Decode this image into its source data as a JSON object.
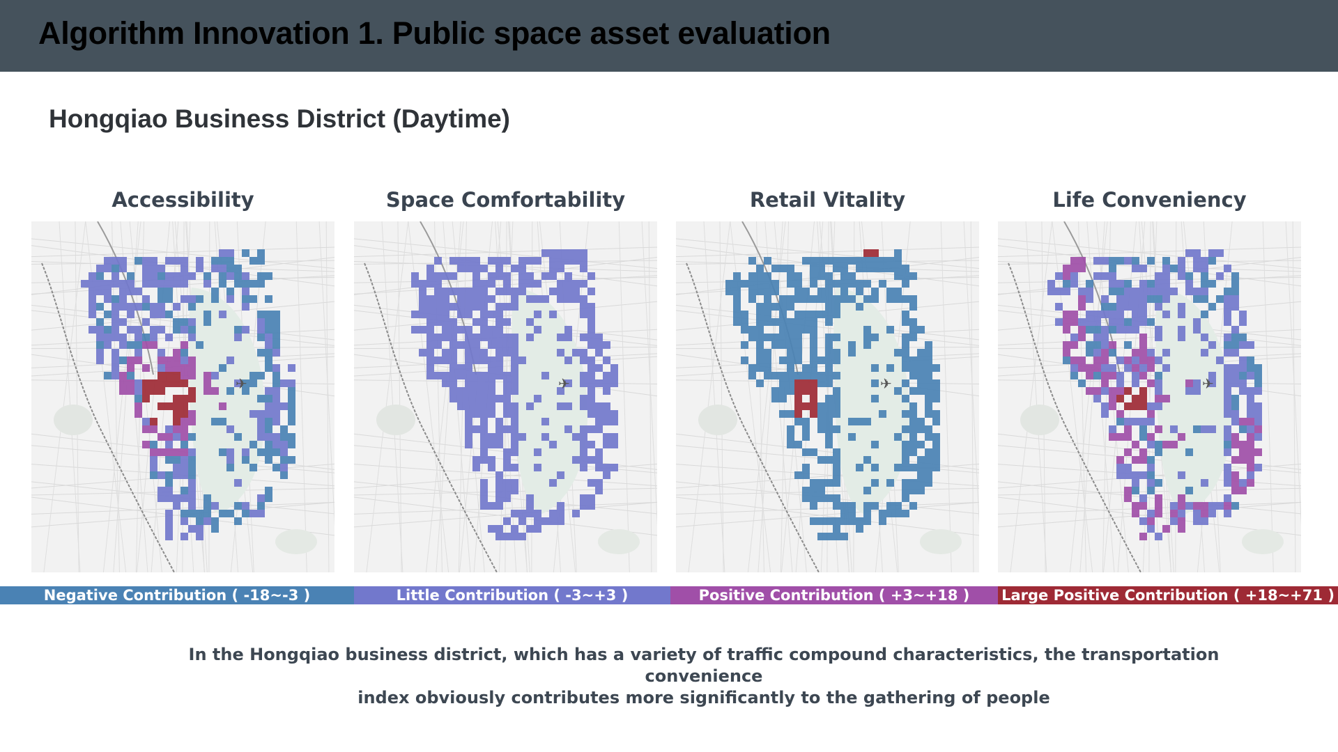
{
  "header": {
    "title": "Algorithm Innovation 1. Public space asset evaluation"
  },
  "subtitle": "Hongqiao Business District (Daytime)",
  "colors": {
    "negative": "#4a82b4",
    "little": "#7278cc",
    "positive": "#a04fa8",
    "large_positive": "#9e2a35",
    "header_bg": "#45525c"
  },
  "panels": [
    {
      "title": "Accessibility",
      "style": "accessibility"
    },
    {
      "title": "Space Comfortability",
      "style": "comfort"
    },
    {
      "title": "Retail Vitality",
      "style": "retail"
    },
    {
      "title": "Life Conveniency",
      "style": "life"
    }
  ],
  "legend": [
    {
      "label": "Negative Contribution ( -18~-3 )",
      "color": "#4a82b4"
    },
    {
      "label": "Little Contribution ( -3~+3 )",
      "color": "#7278cc"
    },
    {
      "label": "Positive Contribution ( +3~+18 )",
      "color": "#a04fa8"
    },
    {
      "label": "Large Positive Contribution ( +18~+71 )",
      "color": "#9e2a35"
    }
  ],
  "caption": {
    "line1": "In the Hongqiao business district, which has a variety of traffic compound characteristics, the transportation convenience",
    "line2": "index obviously contributes more significantly to the gathering of people"
  },
  "map_icons": [
    "airplane-icon",
    "railway-line"
  ]
}
